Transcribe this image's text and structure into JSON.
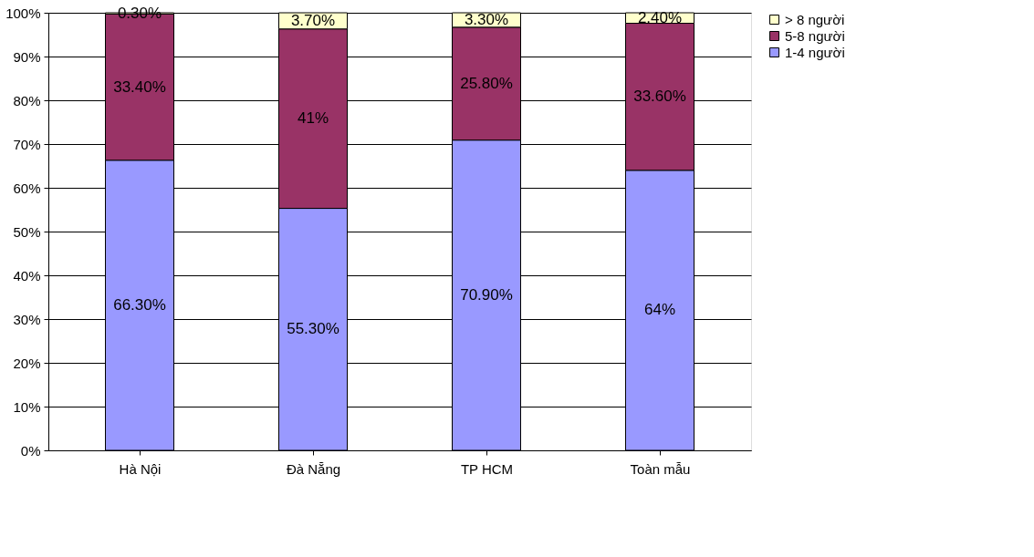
{
  "chart_data": {
    "type": "bar",
    "stacked": true,
    "categories": [
      "Hà Nội",
      "Đà Nẵng",
      "TP HCM",
      "Toàn mẫu"
    ],
    "series": [
      {
        "name": "1-4 người",
        "color": "#9999ff",
        "values": [
          66.3,
          55.3,
          70.9,
          64
        ],
        "value_labels": [
          "66.30%",
          "55.30%",
          "70.90%",
          "64%"
        ]
      },
      {
        "name": "5-8 người",
        "color": "#993366",
        "values": [
          33.4,
          41,
          25.8,
          33.6
        ],
        "value_labels": [
          "33.40%",
          "41%",
          "25.80%",
          "33.60%"
        ]
      },
      {
        "name": "> 8 người",
        "color": "#ffffcc",
        "values": [
          0.3,
          3.7,
          3.3,
          2.4
        ],
        "value_labels": [
          "0.30%",
          "3.70%",
          "3.30%",
          "2.40%"
        ]
      }
    ],
    "ylim": [
      0,
      100
    ],
    "yticks": [
      {
        "value": 0,
        "label": "0%"
      },
      {
        "value": 10,
        "label": "10%"
      },
      {
        "value": 20,
        "label": "20%"
      },
      {
        "value": 30,
        "label": "30%"
      },
      {
        "value": 40,
        "label": "40%"
      },
      {
        "value": 50,
        "label": "50%"
      },
      {
        "value": 60,
        "label": "60%"
      },
      {
        "value": 70,
        "label": "70%"
      },
      {
        "value": 80,
        "label": "80%"
      },
      {
        "value": 90,
        "label": "90%"
      },
      {
        "value": 100,
        "label": "100%"
      }
    ],
    "grid": "y",
    "legend": "right"
  }
}
